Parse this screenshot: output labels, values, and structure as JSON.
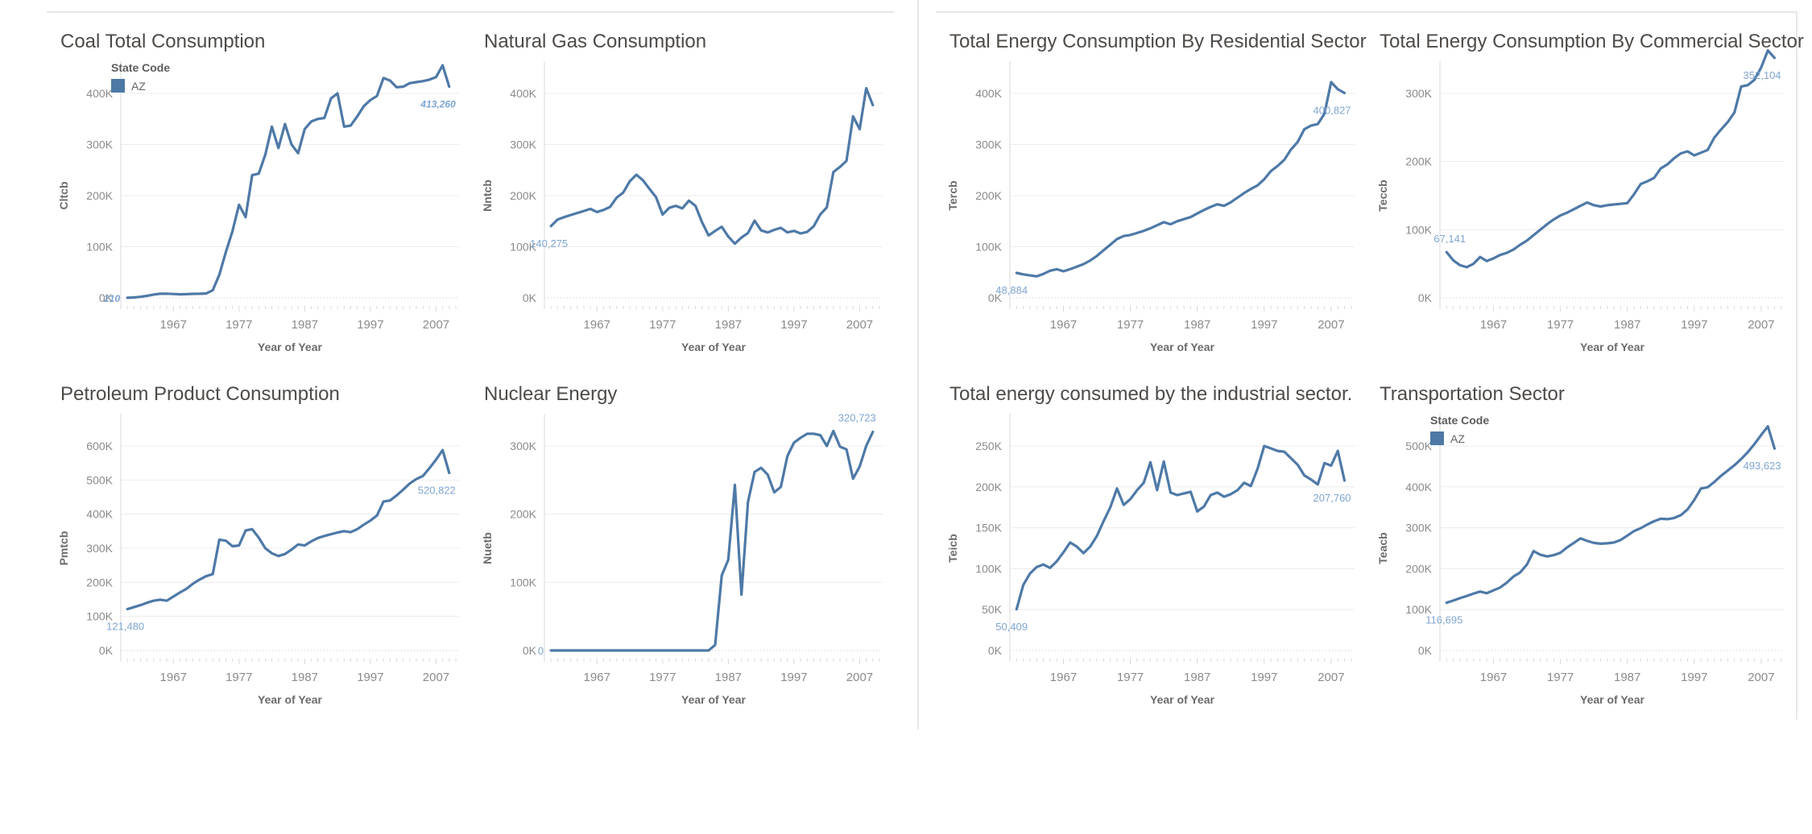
{
  "dashboard": {
    "background": "#ffffff",
    "x_axis_label": "Year of Year",
    "x_ticks": [
      1967,
      1977,
      1987,
      1997,
      2007
    ],
    "year_start": 1960,
    "year_end": 2009,
    "legend": {
      "title": "State Code",
      "items": [
        {
          "label": "AZ",
          "color": "#4e79a7"
        }
      ]
    },
    "colors": {
      "line": "#4e79a7",
      "annotation": "#7fa5d1",
      "grid": "#ececec",
      "zero_line": "#c9c9c9",
      "axis_line": "#d9d9d9"
    }
  },
  "chart_data": [
    {
      "type": "line",
      "title": "Coal Total Consumption",
      "ylabel": "Cltcb",
      "xlabel": "Year of Year",
      "series_name": "AZ",
      "has_legend": true,
      "italic_labels": true,
      "y_ticks_k": [
        0,
        100,
        200,
        300,
        400
      ],
      "x_start_year": 1960,
      "start_label": "210",
      "start_label_pos": "left",
      "end_label": "413,260",
      "end_label_pos": "below",
      "values": [
        210,
        800,
        2000,
        4000,
        6500,
        8000,
        8200,
        7500,
        7000,
        7200,
        7800,
        8000,
        8500,
        15000,
        45000,
        90000,
        130000,
        182000,
        158000,
        240000,
        243000,
        280000,
        335000,
        293000,
        340000,
        300000,
        283000,
        330000,
        345000,
        350000,
        352000,
        390000,
        400000,
        335000,
        337000,
        355000,
        375000,
        387000,
        395000,
        430000,
        425000,
        412000,
        413000,
        420000,
        422000,
        424000,
        427000,
        432000,
        455000,
        413260
      ]
    },
    {
      "type": "line",
      "title": "Natural Gas Consumption",
      "ylabel": "Nntcb",
      "xlabel": "Year of Year",
      "series_name": "AZ",
      "has_legend": false,
      "italic_labels": false,
      "y_ticks_k": [
        0,
        100,
        200,
        300,
        400
      ],
      "x_start_year": 1960,
      "start_label": "140,275",
      "start_label_pos": "below",
      "end_label": "",
      "end_label_pos": "none",
      "values": [
        140275,
        153000,
        158000,
        162000,
        166000,
        170000,
        174000,
        168000,
        172000,
        178000,
        196000,
        206000,
        228000,
        241000,
        230000,
        213000,
        197000,
        163000,
        176000,
        180000,
        175000,
        190000,
        180000,
        148000,
        122000,
        131000,
        139000,
        120000,
        106000,
        118000,
        127000,
        151000,
        132000,
        128000,
        133000,
        137000,
        128000,
        131000,
        126000,
        129000,
        140000,
        163000,
        177000,
        246000,
        256000,
        268000,
        355000,
        330000,
        410000,
        377000
      ]
    },
    {
      "type": "line",
      "title": "Total Energy Consumption By Residential Sector",
      "ylabel": "Tercb",
      "xlabel": "Year of Year",
      "series_name": "AZ",
      "has_legend": false,
      "italic_labels": false,
      "y_ticks_k": [
        0,
        100,
        200,
        300,
        400
      ],
      "x_start_year": 1960,
      "start_label": "48,884",
      "start_label_pos": "below",
      "end_label": "400,827",
      "end_label_pos": "below",
      "values": [
        48884,
        46000,
        44000,
        42000,
        47000,
        53000,
        56000,
        52000,
        56000,
        61000,
        66000,
        73000,
        82000,
        93000,
        104000,
        115000,
        121000,
        123000,
        127000,
        131000,
        136000,
        142000,
        148000,
        144000,
        150000,
        154000,
        158000,
        165000,
        172000,
        178000,
        183000,
        180000,
        187000,
        196000,
        205000,
        213000,
        220000,
        232000,
        248000,
        258000,
        270000,
        290000,
        305000,
        330000,
        337000,
        340000,
        360000,
        422000,
        408000,
        400827
      ]
    },
    {
      "type": "line",
      "title": "Total Energy Consumption By Commercial Sector",
      "ylabel": "Teccb",
      "xlabel": "Year of Year",
      "series_name": "AZ",
      "has_legend": false,
      "italic_labels": false,
      "y_ticks_k": [
        0,
        100,
        200,
        300
      ],
      "x_start_year": 1960,
      "start_label": "67,141",
      "start_label_pos": "above",
      "end_label": "352,104",
      "end_label_pos": "below",
      "values": [
        67141,
        55000,
        48000,
        45000,
        50000,
        60000,
        54000,
        58000,
        63000,
        66000,
        71000,
        78000,
        84000,
        92000,
        100000,
        108000,
        115000,
        121000,
        125000,
        130000,
        135000,
        140000,
        136000,
        134000,
        136000,
        137000,
        138000,
        139000,
        152000,
        167000,
        171000,
        176000,
        190000,
        196000,
        205000,
        212000,
        215000,
        209000,
        213000,
        217000,
        235000,
        247000,
        258000,
        272000,
        310000,
        312000,
        320000,
        338000,
        363000,
        352104
      ]
    },
    {
      "type": "line",
      "title": "Petroleum Product Consumption",
      "ylabel": "Pmtcb",
      "xlabel": "Year of Year",
      "series_name": "AZ",
      "has_legend": false,
      "italic_labels": false,
      "y_ticks_k": [
        0,
        100,
        200,
        300,
        400,
        500,
        600
      ],
      "x_start_year": 1960,
      "start_label": "121,480",
      "start_label_pos": "below",
      "end_label": "520,822",
      "end_label_pos": "below",
      "values": [
        121480,
        127000,
        133000,
        140000,
        146000,
        149000,
        146000,
        158000,
        170000,
        181000,
        196000,
        208000,
        218000,
        224000,
        325000,
        322000,
        306000,
        308000,
        352000,
        356000,
        331000,
        300000,
        285000,
        277000,
        283000,
        296000,
        311000,
        308000,
        320000,
        330000,
        336000,
        341000,
        346000,
        350000,
        347000,
        356000,
        369000,
        381000,
        396000,
        437000,
        440000,
        455000,
        472000,
        490000,
        503000,
        512000,
        535000,
        560000,
        588000,
        520822
      ]
    },
    {
      "type": "line",
      "title": "Nuclear Energy",
      "ylabel": "Nuetb",
      "xlabel": "Year of Year",
      "series_name": "AZ",
      "has_legend": false,
      "italic_labels": false,
      "y_ticks_k": [
        0,
        100,
        200,
        300
      ],
      "x_start_year": 1960,
      "start_label": "0",
      "start_label_pos": "left",
      "end_label": "320,723",
      "end_label_pos": "above",
      "values": [
        0,
        0,
        0,
        0,
        0,
        0,
        0,
        0,
        0,
        0,
        0,
        0,
        0,
        0,
        0,
        0,
        0,
        0,
        0,
        0,
        0,
        0,
        0,
        0,
        0,
        8000,
        110000,
        133000,
        243000,
        82000,
        218000,
        262000,
        268000,
        258000,
        232000,
        240000,
        285000,
        305000,
        312000,
        318000,
        318000,
        316000,
        300000,
        322000,
        299000,
        295000,
        252000,
        270000,
        300000,
        320723
      ]
    },
    {
      "type": "line",
      "title": "Total energy consumed by the industrial sector.",
      "ylabel": "Teicb",
      "xlabel": "Year of Year",
      "series_name": "AZ",
      "has_legend": false,
      "italic_labels": false,
      "y_ticks_k": [
        0,
        50,
        100,
        150,
        200,
        250
      ],
      "x_start_year": 1960,
      "start_label": "50,409",
      "start_label_pos": "below",
      "end_label": "207,760",
      "end_label_pos": "below",
      "values": [
        50409,
        80000,
        94000,
        102000,
        105000,
        101000,
        109000,
        120000,
        132000,
        127000,
        119000,
        127000,
        140000,
        158000,
        175000,
        198000,
        178000,
        185000,
        196000,
        205000,
        230000,
        196000,
        231000,
        193000,
        190000,
        192000,
        194000,
        170000,
        176000,
        190000,
        193000,
        188000,
        191000,
        196000,
        205000,
        201000,
        222000,
        250000,
        247000,
        244000,
        243000,
        235000,
        227000,
        214000,
        209000,
        203000,
        229000,
        226000,
        244000,
        207760
      ]
    },
    {
      "type": "line",
      "title": "Transportation Sector",
      "ylabel": "Teacb",
      "xlabel": "Year of Year",
      "series_name": "AZ",
      "has_legend": true,
      "italic_labels": false,
      "y_ticks_k": [
        0,
        100,
        200,
        300,
        400,
        500
      ],
      "x_start_year": 1960,
      "start_label": "116,695",
      "start_label_pos": "below",
      "end_label": "493,623",
      "end_label_pos": "below",
      "values": [
        116695,
        122000,
        128000,
        133000,
        139000,
        144000,
        140000,
        147000,
        154000,
        166000,
        181000,
        191000,
        210000,
        243000,
        234000,
        230000,
        233000,
        239000,
        252000,
        263000,
        274000,
        268000,
        263000,
        261000,
        262000,
        264000,
        270000,
        281000,
        292000,
        299000,
        308000,
        316000,
        322000,
        321000,
        324000,
        331000,
        345000,
        368000,
        396000,
        399000,
        412000,
        427000,
        440000,
        453000,
        468000,
        485000,
        505000,
        527000,
        548000,
        493623
      ]
    }
  ]
}
